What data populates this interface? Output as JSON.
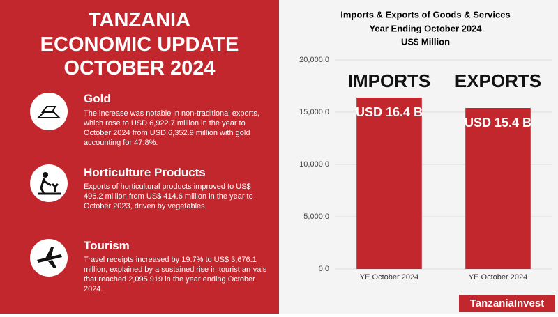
{
  "header": {
    "title": [
      "TANZANIA",
      "ECONOMIC UPDATE",
      "OCTOBER 2024"
    ]
  },
  "items": [
    {
      "heading": "Gold",
      "body": "The increase was notable in non-traditional exports, which rose to USD 6,922.7 million in the year to October 2024 from USD 6,352.9 million with gold accounting for 47.8%."
    },
    {
      "heading": "Horticulture Products",
      "body": "Exports of horticultural products improved to US$ 496.2 million from US$ 414.6 million in the year to October 2023, driven by vegetables."
    },
    {
      "heading": "Tourism",
      "body": "Travel receipts increased by 19.7% to US$ 3,676.1 million, explained by a sustained rise in tourist arrivals that reached 2,095,919 in the year ending October 2024."
    }
  ],
  "logo": "TanzaniaInvest",
  "chart_data": {
    "type": "bar",
    "title": "Imports & Exports of Goods & Services",
    "subtitle": [
      "Year Ending October 2024",
      "US$ Million"
    ],
    "categories": [
      "YE October 2024",
      "YE October 2024"
    ],
    "bar_titles": [
      "IMPORTS",
      "EXPORTS"
    ],
    "values": [
      16400,
      15400
    ],
    "value_labels": [
      "USD 16.4 B",
      "USD 15.4 B"
    ],
    "color": "#c1272d",
    "ylim": [
      0,
      20000
    ],
    "yticks": [
      {
        "value": 0,
        "label": "0.0"
      },
      {
        "value": 5000,
        "label": "5,000.0"
      },
      {
        "value": 10000,
        "label": "10,000.0"
      },
      {
        "value": 15000,
        "label": "15,000.0"
      },
      {
        "value": 20000,
        "label": "20,000.0"
      }
    ],
    "grid": true
  }
}
